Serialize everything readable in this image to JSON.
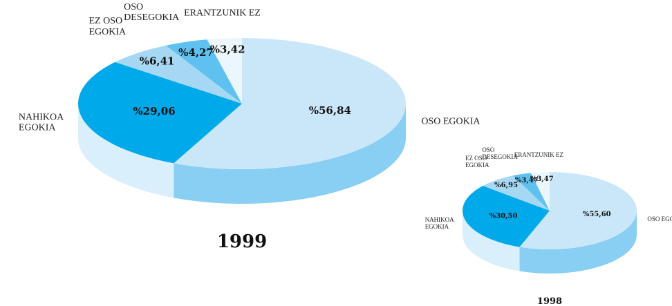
{
  "chart_data": [
    {
      "type": "pie",
      "title": "1999",
      "categories": [
        "OSO EGOKIA",
        "NAHIKOA EGOKIA",
        "EZ OSO EGOKIA",
        "OSO DESEGOKIA",
        "ERANTZUNIK EZ"
      ],
      "values": [
        56.84,
        29.06,
        6.41,
        4.27,
        3.42
      ],
      "value_labels": [
        "%56,84",
        "%29,06",
        "%6,41",
        "%4,27",
        "%3,42"
      ],
      "colors": [
        "#c9e7f8",
        "#00a9e9",
        "#a6d8f4",
        "#5ec1f0",
        "#ebf7fd"
      ],
      "side_colors": [
        "#89cef3",
        "#d9effb",
        "#8fcff2",
        "#45b5ea",
        "#d9effb"
      ]
    },
    {
      "type": "pie",
      "title": "1998",
      "categories": [
        "OSO EGOKIA",
        "NAHIKOA EGOKIA",
        "EZ OSO EGOKIA",
        "OSO DESEGOKIA",
        "ERANTZUNIK EZ"
      ],
      "values": [
        55.6,
        30.5,
        6.95,
        3.47,
        3.47
      ],
      "value_labels": [
        "%55,60",
        "%30,50",
        "%6,95",
        "%3,47",
        "%3,47"
      ],
      "colors": [
        "#c9e7f8",
        "#00a9e9",
        "#a6d8f4",
        "#5ec1f0",
        "#ebf7fd"
      ],
      "side_colors": [
        "#89cef3",
        "#d9effb",
        "#8fcff2",
        "#45b5ea",
        "#d9effb"
      ]
    }
  ]
}
